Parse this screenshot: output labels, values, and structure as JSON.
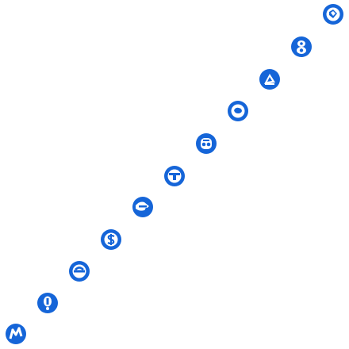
{
  "icon_color": "#1565d8",
  "icons": [
    {
      "name": "badge-icon-1"
    },
    {
      "name": "badge-icon-2"
    },
    {
      "name": "badge-icon-3"
    },
    {
      "name": "badge-icon-4"
    },
    {
      "name": "badge-icon-5"
    },
    {
      "name": "badge-icon-6"
    },
    {
      "name": "badge-icon-7"
    },
    {
      "name": "badge-icon-8"
    },
    {
      "name": "badge-icon-9"
    },
    {
      "name": "badge-icon-10"
    },
    {
      "name": "badge-icon-11"
    }
  ]
}
